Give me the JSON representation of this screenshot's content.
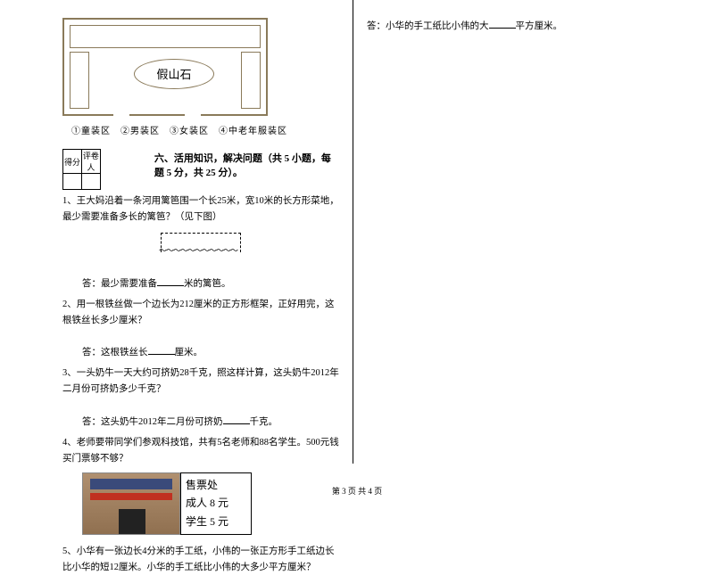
{
  "diagram": {
    "rock_label": "假山石",
    "legend": "①童装区　②男装区　③女装区　④中老年服装区"
  },
  "score_table": {
    "col1": "得分",
    "col2": "评卷人"
  },
  "section6": {
    "title": "六、活用知识，解决问题（共 5 小题，每题 5 分，共 25 分）。",
    "q1": "1、王大妈沿着一条河用篱笆围一个长25米，宽10米的长方形菜地，最少需要准备多长的篱笆？（见下图）",
    "a1_prefix": "答：最少需要准备",
    "a1_suffix": "米的篱笆。",
    "q2": "2、用一根铁丝做一个边长为212厘米的正方形框架，正好用完，这根铁丝长多少厘米？",
    "a2_prefix": "答：这根铁丝长",
    "a2_suffix": "厘米。",
    "q3": "3、一头奶牛一天大约可挤奶28千克，照这样计算，这头奶牛2012年二月份可挤奶多少千克？",
    "a3_prefix": "答：这头奶牛2012年二月份可挤奶",
    "a3_suffix": "千克。",
    "q4": "4、老师要带同学们参观科技馆，共有5名老师和88名学生。500元钱买门票够不够？",
    "q5": "5、小华有一张边长4分米的手工纸，小伟的一张正方形手工纸边长比小华的短12厘米。小华的手工纸比小伟的大多少平方厘米？"
  },
  "ticket": {
    "title": "售票处",
    "adult": "成人 8 元",
    "student": "学生 5 元"
  },
  "right_col": {
    "a5_prefix": "答：小华的手工纸比小伟的大",
    "a5_suffix": "平方厘米。"
  },
  "footer": "第 3 页 共 4 页"
}
